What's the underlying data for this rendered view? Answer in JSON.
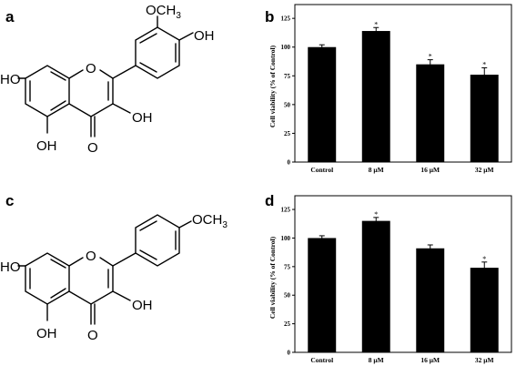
{
  "panels": {
    "a": "a",
    "b": "b",
    "c": "c",
    "d": "d"
  },
  "structure_a": {
    "ho_left": "HO",
    "oh_bottom": "OH",
    "oh_right": "OH",
    "oh_top": "OH",
    "ring_o": "O",
    "carbonyl_o": "O",
    "och3_main": "OCH",
    "och3_sub": "3"
  },
  "structure_c": {
    "ho_left": "HO",
    "oh_bottom": "OH",
    "oh_right": "OH",
    "ring_o": "O",
    "carbonyl_o": "O",
    "och3_main": "OCH",
    "och3_sub": "3"
  },
  "chart_data": [
    {
      "panel": "b",
      "type": "bar",
      "categories": [
        "Control",
        "8 μM",
        "16 μM",
        "32 μM"
      ],
      "values": [
        100,
        114,
        85,
        76
      ],
      "errors": [
        2,
        3,
        4,
        6
      ],
      "significance": [
        "",
        "*",
        "*",
        "*"
      ],
      "ylabel": "Cell viability (% of Control)",
      "yticks": [
        "0",
        "25",
        "50",
        "75",
        "100",
        "125"
      ],
      "ylim": [
        0,
        137
      ]
    },
    {
      "panel": "d",
      "type": "bar",
      "categories": [
        "Control",
        "8 μM",
        "16 μM",
        "32 μM"
      ],
      "values": [
        100,
        115,
        91,
        74
      ],
      "errors": [
        2,
        3,
        3,
        5
      ],
      "significance": [
        "",
        "*",
        "",
        "*"
      ],
      "ylabel": "Cell viability (% of Control)",
      "yticks": [
        "0",
        "25",
        "50",
        "75",
        "100",
        "125"
      ],
      "ylim": [
        0,
        137
      ]
    }
  ]
}
